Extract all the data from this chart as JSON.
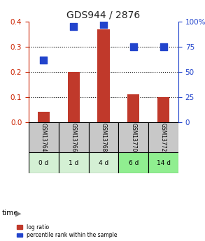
{
  "title": "GDS944 / 2876",
  "gsm_labels": [
    "GSM13764",
    "GSM13766",
    "GSM13768",
    "GSM13770",
    "GSM13772"
  ],
  "time_labels": [
    "0 d",
    "1 d",
    "4 d",
    "6 d",
    "14 d"
  ],
  "log_ratio": [
    0.04,
    0.2,
    0.37,
    0.11,
    0.1
  ],
  "percentile_rank": [
    62,
    95,
    97,
    75,
    75
  ],
  "left_ylim": [
    0,
    0.4
  ],
  "right_ylim": [
    0,
    100
  ],
  "left_yticks": [
    0,
    0.1,
    0.2,
    0.3,
    0.4
  ],
  "right_yticks": [
    0,
    25,
    50,
    75,
    100
  ],
  "bar_color": "#c0392b",
  "dot_color": "#2244cc",
  "grid_color": "#000000",
  "gsm_bg_color": "#c8c8c8",
  "time_bg_colors": [
    "#d4f0d4",
    "#d4f0d4",
    "#d4f0d4",
    "#90ee90",
    "#90ee90"
  ],
  "title_color": "#222222",
  "left_tick_color": "#cc2200",
  "right_tick_color": "#2244cc",
  "bar_width": 0.4,
  "dot_size": 60
}
